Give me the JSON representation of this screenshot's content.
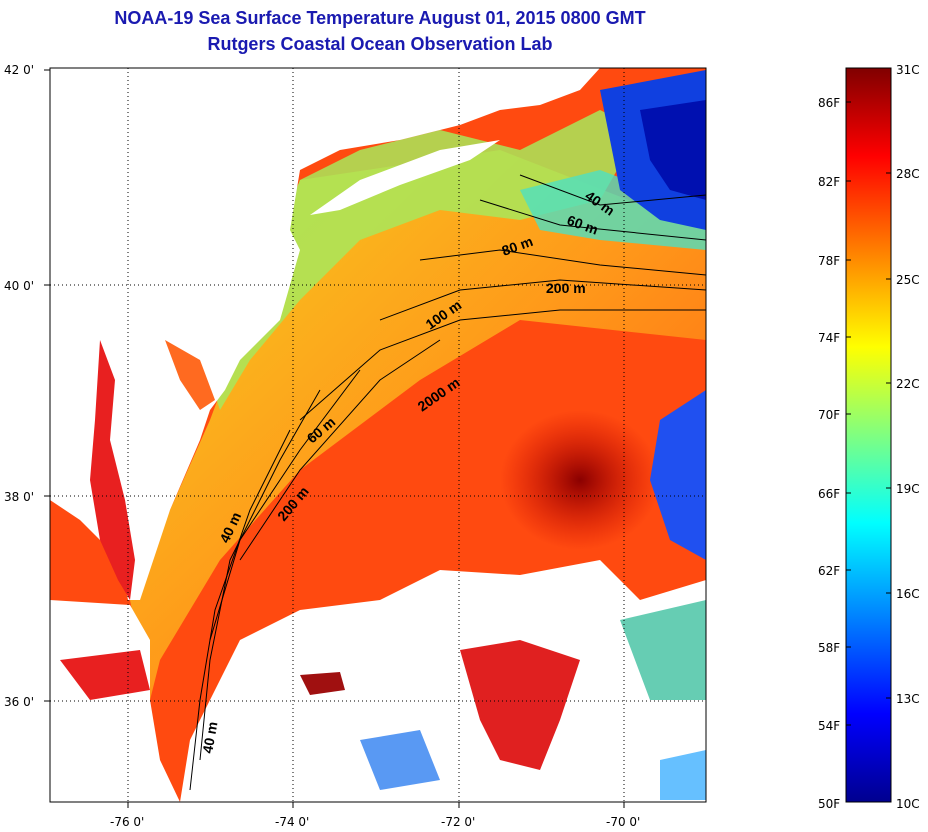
{
  "title": {
    "line1": "NOAA-19 Sea Surface Temperature August 01, 2015 0800 GMT",
    "line2": "Rutgers Coastal Ocean Observation Lab"
  },
  "axes": {
    "lat_ticks": [
      "42 0'",
      "40 0'",
      "38 0'",
      "36 0'"
    ],
    "lon_ticks": [
      "-76 0'",
      "-74 0'",
      "-72 0'",
      "-70 0'"
    ]
  },
  "contour_labels": [
    "40 m",
    "60 m",
    "80 m",
    "200 m",
    "100 m",
    "2000 m",
    "60 m",
    "200 m",
    "40 m",
    "40 m"
  ],
  "colorbar": {
    "fahrenheit": [
      "86F",
      "82F",
      "78F",
      "74F",
      "70F",
      "66F",
      "62F",
      "58F",
      "54F",
      "50F"
    ],
    "celsius": [
      "31C",
      "28C",
      "25C",
      "22C",
      "19C",
      "16C",
      "13C",
      "10C"
    ],
    "range_c": [
      10,
      31
    ],
    "stops": [
      "#00008f",
      "#0000ff",
      "#0080ff",
      "#00ffff",
      "#80ff80",
      "#ffff00",
      "#ff8000",
      "#ff0000",
      "#800000"
    ]
  }
}
